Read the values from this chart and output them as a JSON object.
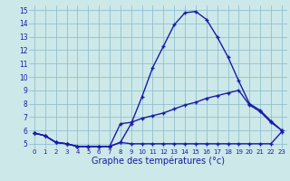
{
  "xlabel": "Graphe des températures (°c)",
  "x": [
    0,
    1,
    2,
    3,
    4,
    5,
    6,
    7,
    8,
    9,
    10,
    11,
    12,
    13,
    14,
    15,
    16,
    17,
    18,
    19,
    20,
    21,
    22,
    23
  ],
  "line1": [
    5.8,
    5.6,
    5.1,
    5.0,
    4.8,
    4.8,
    4.8,
    4.8,
    5.1,
    6.5,
    8.5,
    10.7,
    12.3,
    13.9,
    14.8,
    14.9,
    14.3,
    13.0,
    11.5,
    9.7,
    8.0,
    7.5,
    6.7,
    6.0
  ],
  "line2": [
    5.8,
    5.6,
    5.1,
    5.0,
    4.8,
    4.8,
    4.8,
    4.8,
    6.5,
    6.6,
    6.9,
    7.1,
    7.3,
    7.6,
    7.9,
    8.1,
    8.4,
    8.6,
    8.8,
    9.0,
    7.9,
    7.4,
    6.6,
    6.0
  ],
  "line3": [
    5.8,
    5.6,
    5.1,
    5.0,
    4.8,
    4.8,
    4.8,
    4.8,
    5.1,
    5.0,
    5.0,
    5.0,
    5.0,
    5.0,
    5.0,
    5.0,
    5.0,
    5.0,
    5.0,
    5.0,
    5.0,
    5.0,
    5.0,
    5.9
  ],
  "ylim": [
    4.65,
    15.35
  ],
  "xlim": [
    -0.5,
    23.5
  ],
  "yticks": [
    5,
    6,
    7,
    8,
    9,
    10,
    11,
    12,
    13,
    14,
    15
  ],
  "xticks": [
    0,
    1,
    2,
    3,
    4,
    5,
    6,
    7,
    8,
    9,
    10,
    11,
    12,
    13,
    14,
    15,
    16,
    17,
    18,
    19,
    20,
    21,
    22,
    23
  ],
  "line_color": "#1a1aaa",
  "bg_color": "#cce8e8",
  "grid_color": "#88b8cc",
  "marker": "+",
  "marker_size": 3.5,
  "marker_lw": 1.0,
  "line_width": 1.0,
  "xlabel_fontsize": 7.0,
  "tick_fontsize_x": 5.0,
  "tick_fontsize_y": 5.5
}
